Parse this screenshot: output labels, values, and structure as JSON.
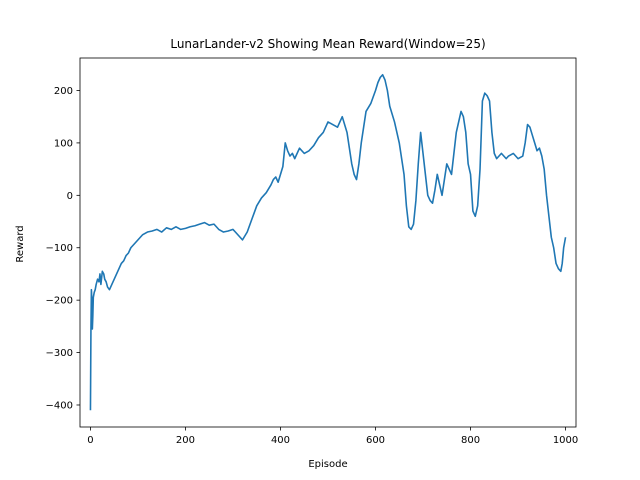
{
  "chart_data": {
    "type": "line",
    "title": "LunarLander-v2 Showing Mean Reward(Window=25)",
    "xlabel": "Episode",
    "ylabel": "Reward",
    "xlim": [
      -22,
      1022
    ],
    "ylim": [
      -442,
      262
    ],
    "xticks": [
      0,
      200,
      400,
      600,
      800,
      1000
    ],
    "yticks": [
      -400,
      -300,
      -200,
      -100,
      0,
      100,
      200
    ],
    "xtick_labels": [
      "0",
      "200",
      "400",
      "600",
      "800",
      "1000"
    ],
    "ytick_labels": [
      "−400",
      "−300",
      "−200",
      "−100",
      "0",
      "100",
      "200"
    ],
    "grid": false,
    "color": "#1f77b4",
    "series": [
      {
        "x": [
          0,
          1,
          2,
          3,
          4,
          5,
          6,
          8,
          10,
          12,
          15,
          18,
          20,
          22,
          25,
          28,
          30,
          33,
          36,
          40,
          45,
          50,
          55,
          60,
          65,
          70,
          75,
          80,
          85,
          90,
          95,
          100,
          110,
          120,
          130,
          140,
          150,
          160,
          170,
          180,
          190,
          200,
          210,
          220,
          230,
          240,
          250,
          260,
          270,
          280,
          290,
          300,
          305,
          310,
          315,
          320,
          330,
          340,
          350,
          360,
          370,
          380,
          385,
          390,
          395,
          400,
          405,
          410,
          415,
          420,
          425,
          430,
          440,
          450,
          460,
          470,
          480,
          490,
          500,
          510,
          520,
          530,
          540,
          545,
          550,
          555,
          560,
          565,
          570,
          580,
          590,
          600,
          605,
          610,
          615,
          620,
          625,
          630,
          640,
          650,
          655,
          660,
          665,
          670,
          675,
          680,
          685,
          690,
          695,
          700,
          705,
          710,
          715,
          720,
          725,
          730,
          735,
          740,
          745,
          750,
          755,
          760,
          765,
          770,
          775,
          780,
          785,
          790,
          795,
          800,
          805,
          810,
          815,
          820,
          825,
          830,
          835,
          840,
          845,
          850,
          855,
          860,
          865,
          870,
          875,
          880,
          890,
          900,
          910,
          915,
          920,
          925,
          930,
          935,
          940,
          945,
          950,
          955,
          960,
          965,
          970,
          975,
          980,
          985,
          990,
          993,
          996,
          1000
        ],
        "y": [
          -410,
          -260,
          -180,
          -200,
          -255,
          -230,
          -195,
          -185,
          -180,
          -170,
          -160,
          -165,
          -150,
          -170,
          -145,
          -150,
          -160,
          -165,
          -175,
          -180,
          -170,
          -160,
          -150,
          -140,
          -130,
          -125,
          -115,
          -110,
          -100,
          -95,
          -90,
          -85,
          -75,
          -70,
          -68,
          -65,
          -70,
          -62,
          -65,
          -60,
          -65,
          -63,
          -60,
          -58,
          -55,
          -52,
          -57,
          -55,
          -65,
          -70,
          -68,
          -65,
          -70,
          -75,
          -80,
          -85,
          -70,
          -45,
          -20,
          -5,
          5,
          20,
          30,
          35,
          25,
          40,
          55,
          100,
          85,
          75,
          80,
          70,
          90,
          80,
          85,
          95,
          110,
          120,
          140,
          135,
          130,
          150,
          120,
          90,
          60,
          40,
          30,
          60,
          100,
          160,
          175,
          200,
          215,
          225,
          230,
          220,
          200,
          170,
          140,
          100,
          70,
          40,
          -20,
          -60,
          -65,
          -55,
          -10,
          60,
          120,
          80,
          40,
          0,
          -10,
          -15,
          10,
          40,
          20,
          0,
          30,
          60,
          50,
          40,
          80,
          120,
          140,
          160,
          150,
          120,
          60,
          40,
          -30,
          -40,
          -20,
          50,
          180,
          195,
          190,
          180,
          120,
          80,
          70,
          75,
          80,
          75,
          70,
          75,
          80,
          70,
          75,
          100,
          135,
          130,
          115,
          100,
          85,
          90,
          75,
          50,
          0,
          -40,
          -80,
          -100,
          -130,
          -140,
          -145,
          -130,
          -100,
          -80
        ]
      }
    ]
  }
}
